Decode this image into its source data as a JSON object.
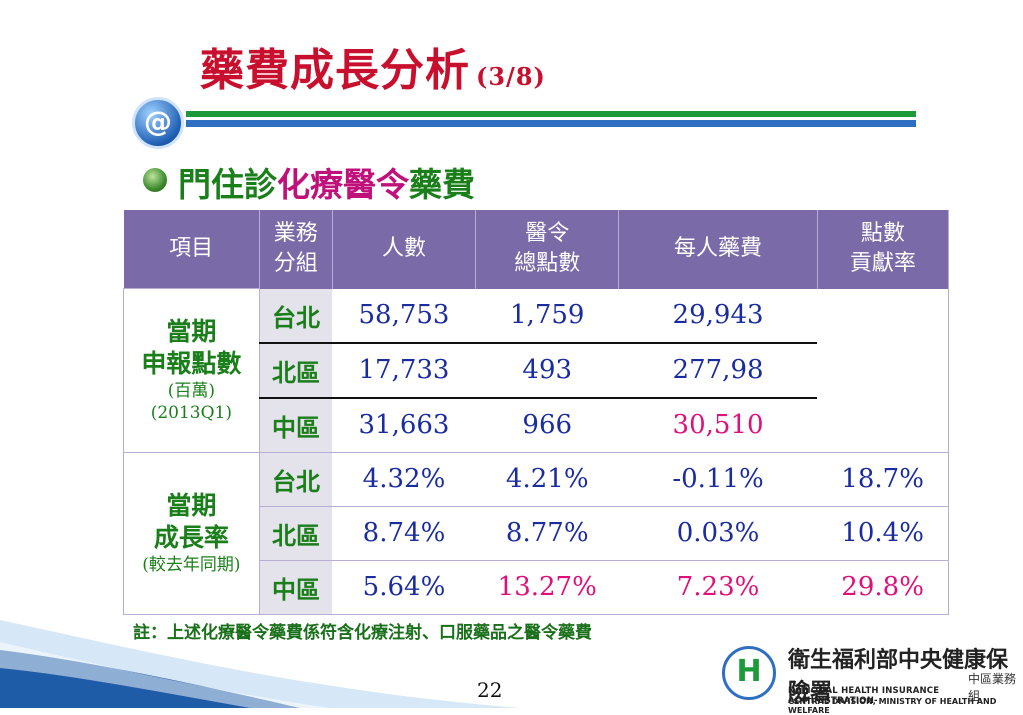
{
  "title": {
    "main": "藥費成長分析",
    "sub": "(3/8)"
  },
  "subtitle": {
    "part1": "門住診",
    "part2": "化療醫令",
    "part3": "藥費"
  },
  "table": {
    "headers": [
      "項目",
      "業務\n分組",
      "人數",
      "醫令\n總點數",
      "每人藥費",
      "點數\n貢獻率"
    ],
    "group1": {
      "label_line1": "當期",
      "label_line2": "申報點數",
      "label_line3": "(百萬)",
      "label_line4": "(2013Q1)",
      "rows": [
        {
          "region": "台北",
          "people": "58,753",
          "points": "1,759",
          "per_person": "29,943",
          "contribution": ""
        },
        {
          "region": "北區",
          "people": "17,733",
          "points": "493",
          "per_person": "277,98",
          "contribution": ""
        },
        {
          "region": "中區",
          "people": "31,663",
          "points": "966",
          "per_person": "30,510",
          "contribution": ""
        }
      ]
    },
    "group2": {
      "label_line1": "當期",
      "label_line2": "成長率",
      "label_line3": "(較去年同期)",
      "rows": [
        {
          "region": "台北",
          "people": "4.32%",
          "points": "4.21%",
          "per_person": "-0.11%",
          "contribution": "18.7%"
        },
        {
          "region": "北區",
          "people": "8.74%",
          "points": "8.77%",
          "per_person": "0.03%",
          "contribution": "10.4%"
        },
        {
          "region": "中區",
          "people": "5.64%",
          "points": "13.27%",
          "per_person": "7.23%",
          "contribution": "29.8%"
        }
      ]
    }
  },
  "note": "註：上述化療醫令藥費係符含化療注射、口服藥品之醫令藥費",
  "page_number": "22",
  "footer": {
    "org_cn": "衛生福利部中央健康保險署",
    "unit": "中區業務組",
    "org_en_line1": "NATIONAL HEALTH INSURANCE ADMINISTRATION-",
    "org_en_line2": "CENTRAL DIVISION, MINISTRY OF HEALTH AND WELFARE"
  },
  "colors": {
    "title": "#c8102e",
    "header_bg": "#7b6aa8",
    "accent_green": "#1a7f1a",
    "accent_magenta": "#e0107a",
    "value_blue": "#1a2ca0"
  }
}
